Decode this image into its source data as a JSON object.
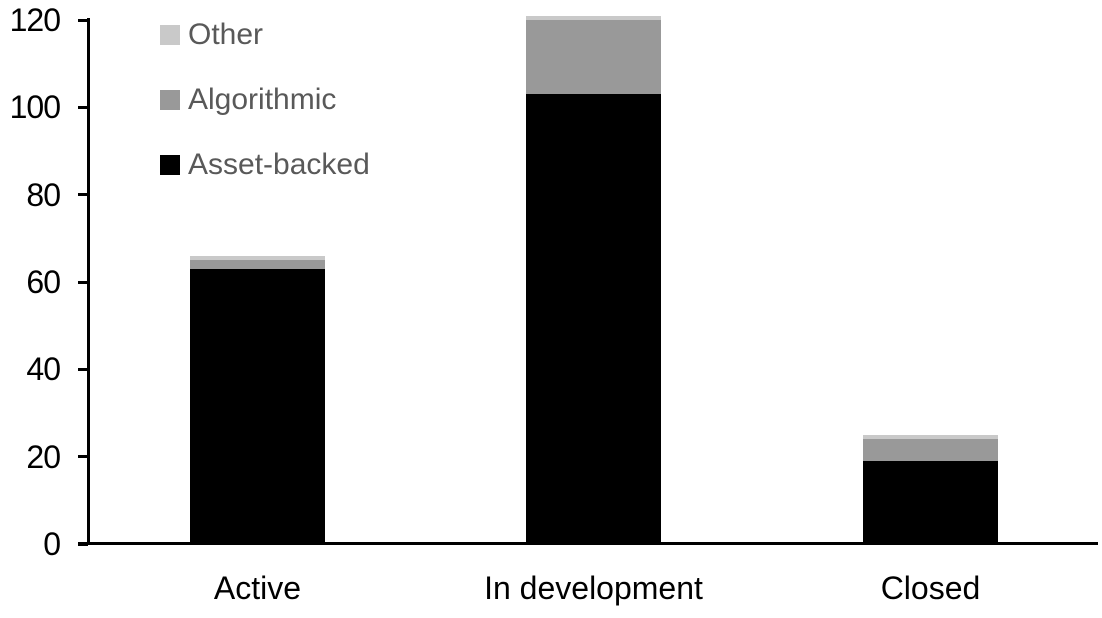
{
  "chart_data": {
    "type": "bar",
    "stacked": true,
    "title": "",
    "xlabel": "",
    "ylabel": "",
    "categories": [
      "Active",
      "In development",
      "Closed"
    ],
    "series": [
      {
        "name": "Asset-backed",
        "color": "#000000",
        "values": [
          63,
          103,
          19
        ]
      },
      {
        "name": "Algorithmic",
        "color": "#999999",
        "values": [
          2,
          17,
          5
        ]
      },
      {
        "name": "Other",
        "color": "#c9c9c9",
        "values": [
          1,
          1,
          1
        ]
      }
    ],
    "totals": [
      66,
      121,
      25
    ],
    "yaxis": {
      "ticks": [
        0,
        20,
        40,
        60,
        80,
        100,
        120
      ],
      "range": [
        0,
        120
      ],
      "grid": false
    },
    "legend": {
      "position": "top-left",
      "order": [
        "Other",
        "Algorithmic",
        "Asset-backed"
      ],
      "text_color": "#595959"
    }
  },
  "colors": {
    "background": "#ffffff",
    "axis": "#000000",
    "axis_label_color": "#000000"
  }
}
